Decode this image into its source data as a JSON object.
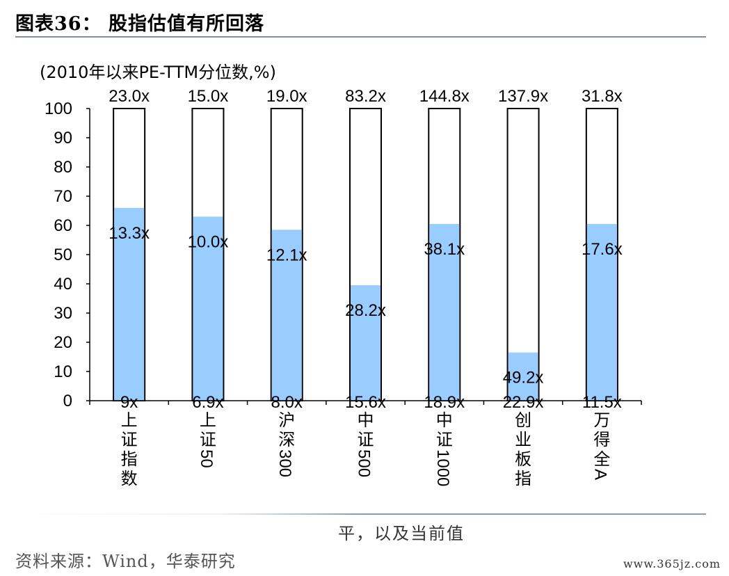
{
  "title": "图表36： 股指估值有所回落",
  "unit_label": "(2010年以来PE-TTM分位数,%)",
  "note": "平，以及当前值",
  "source": "资料来源：Wind，华泰研究",
  "watermark": "www.365jz.com",
  "colors": {
    "bar_fill": "#99ccff",
    "frame": "#000000",
    "rule": "#7f8fa6"
  },
  "chart_data": {
    "type": "bar",
    "ylim": [
      0,
      100
    ],
    "yticks": [
      "0",
      "10",
      "20",
      "30",
      "40",
      "50",
      "60",
      "70",
      "80",
      "90",
      "100"
    ],
    "categories": [
      "上证指数",
      "上证50",
      "沪深300",
      "中证500",
      "中证1000",
      "创业板指",
      "万得全A"
    ],
    "values": [
      66,
      63,
      58.5,
      39.5,
      60.5,
      16.5,
      60.5
    ],
    "max_labels": [
      "23.0x",
      "15.0x",
      "19.0x",
      "83.2x",
      "144.8x",
      "137.9x",
      "31.8x"
    ],
    "current_labels": [
      "13.3x",
      "10.0x",
      "12.1x",
      "28.2x",
      "38.1x",
      "49.2x",
      "17.6x"
    ],
    "min_labels": [
      "9x",
      "6.9x",
      "8.0x",
      "15.6x",
      "18.9x",
      "22.9x",
      "11.5x"
    ],
    "grid": false,
    "legend": "none"
  }
}
